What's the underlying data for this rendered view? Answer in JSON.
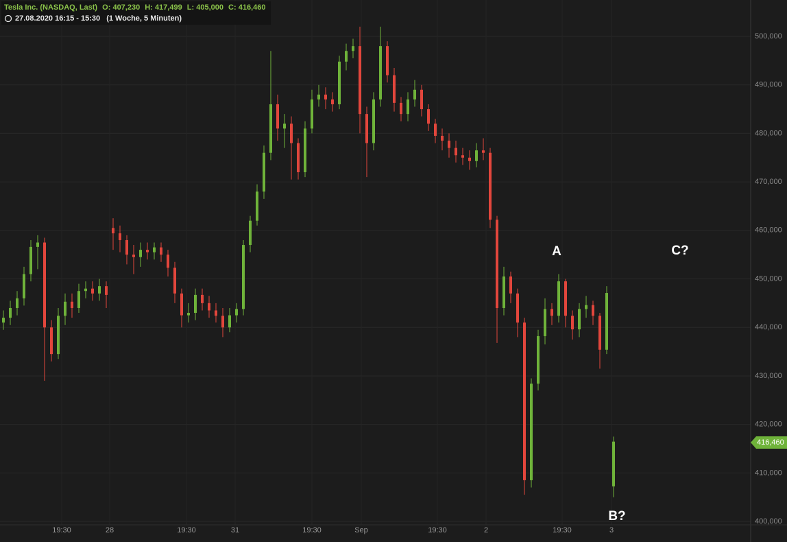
{
  "chart_data": {
    "type": "candlestick",
    "header": {
      "instrument": "Tesla Inc. (NASDAQ, Last)",
      "open": "O: 407,230",
      "high": "H: 417,499",
      "low": "L: 405,000",
      "close": "C: 416,460",
      "range": "27.08.2020 16:15 - 15:30",
      "interval": "(1 Woche, 5 Minuten)"
    },
    "last_price_label": "416,460",
    "annotations": [
      "A",
      "C?",
      "B?"
    ],
    "up_color": "#6fb33a",
    "down_color": "#e2463c",
    "grid": true,
    "open": [
      441,
      442.0,
      444,
      446,
      451,
      456.6,
      457.5,
      440,
      434.5,
      442.4,
      445.3,
      444,
      447.5,
      448,
      447,
      448.5,
      460.5,
      459.4,
      458,
      455,
      454.5,
      456,
      455.5,
      456.5,
      455,
      452.3,
      447,
      442.5,
      443,
      446.7,
      445,
      443.5,
      442.4,
      440,
      442.5,
      443.8,
      457,
      462,
      468,
      476,
      486,
      481,
      482,
      478,
      472,
      481,
      487,
      488,
      487,
      486,
      494.8,
      497,
      498,
      484,
      478,
      487,
      498,
      492,
      486.3,
      484,
      487,
      489,
      485,
      482,
      479.5,
      478.5,
      477,
      475.5,
      475,
      474.3,
      476.5,
      476,
      462.2,
      444,
      450.5,
      447,
      441,
      408.5,
      428.4,
      438.2,
      443.8,
      442.4,
      449.5,
      442.4,
      439.6,
      443.8,
      444.6,
      442.4,
      435.4,
      407.23
    ],
    "high": [
      443.5,
      445.5,
      447.5,
      452.5,
      458,
      459,
      458.5,
      441.5,
      444,
      447,
      447,
      449,
      449.5,
      449.5,
      450,
      449.5,
      462.5,
      461,
      459,
      457,
      457.5,
      457.5,
      457.5,
      457.5,
      456,
      453.5,
      448,
      445,
      448,
      448,
      446.5,
      445,
      444,
      444,
      445,
      458,
      463,
      469.5,
      477.5,
      497,
      488,
      484,
      483.5,
      479,
      482.5,
      489,
      490,
      489.5,
      488.5,
      496,
      498.5,
      499.5,
      502,
      485.5,
      488.5,
      502,
      499,
      493.5,
      487.5,
      488.5,
      491,
      490,
      486,
      483,
      481,
      480,
      478.5,
      477,
      476.5,
      478,
      479,
      477,
      463,
      452.5,
      451.5,
      448,
      442,
      429.5,
      439.5,
      446,
      445,
      451,
      450,
      443.5,
      445,
      446.5,
      445.5,
      443,
      448.5,
      417.499
    ],
    "low": [
      439.5,
      440.5,
      442.5,
      444.5,
      449.5,
      452,
      429,
      433,
      433.5,
      440.5,
      442,
      443,
      446,
      445.5,
      445.5,
      444,
      456,
      455.5,
      453,
      451,
      452.5,
      454,
      454,
      453.5,
      450.5,
      445,
      440,
      441,
      441.5,
      443.5,
      442,
      441,
      438,
      439,
      441,
      442.5,
      455.5,
      461,
      466.5,
      474.5,
      478.5,
      477,
      470.5,
      470.5,
      471,
      480,
      485.5,
      485,
      484.5,
      485,
      493,
      495.5,
      480,
      471,
      476.5,
      485.5,
      490.5,
      484.5,
      482.5,
      482.5,
      485.5,
      483.5,
      480.5,
      478,
      476.5,
      475,
      474,
      473.5,
      472.5,
      473,
      474.5,
      460.5,
      436.8,
      442.5,
      445,
      438,
      405.5,
      407,
      427,
      436.5,
      440.5,
      441,
      440,
      437.5,
      438,
      442,
      440.5,
      431.5,
      434.5,
      405
    ],
    "close": [
      442.0,
      444,
      446,
      451,
      456.6,
      457.5,
      440,
      434.5,
      442.4,
      445.3,
      444,
      447.5,
      448,
      447,
      448.5,
      446.7,
      459.4,
      458,
      455,
      454.5,
      456,
      455.5,
      456.5,
      455,
      452.3,
      447,
      442.5,
      443,
      446.7,
      445,
      443.5,
      442.4,
      440,
      442.5,
      443.8,
      457,
      462,
      468,
      476,
      486,
      481,
      482,
      478,
      472,
      481,
      487,
      488,
      487,
      486,
      494.8,
      497,
      498,
      484,
      478,
      487,
      498,
      492,
      486.3,
      484,
      487,
      489,
      485,
      482,
      479.5,
      478.5,
      477,
      475.5,
      475,
      474.3,
      476.5,
      476,
      462.2,
      444,
      450.5,
      447,
      441,
      408.5,
      428.4,
      438.2,
      443.8,
      442.4,
      449.5,
      442.4,
      439.6,
      443.8,
      444.6,
      442.4,
      435.4,
      447.1,
      416.46
    ],
    "xlim": [
      -0.5,
      109
    ],
    "xticks": [
      {
        "value": 8.5,
        "label": "19:30"
      },
      {
        "value": 15.5,
        "label": "28"
      },
      {
        "value": 26.7,
        "label": "19:30"
      },
      {
        "value": 33.8,
        "label": "31"
      },
      {
        "value": 45,
        "label": "19:30"
      },
      {
        "value": 52.2,
        "label": "Sep"
      },
      {
        "value": 63.3,
        "label": "19:30"
      },
      {
        "value": 70.4,
        "label": "2"
      },
      {
        "value": 81.5,
        "label": "19:30"
      },
      {
        "value": 88.7,
        "label": "3"
      }
    ],
    "ylim": [
      399.3,
      507.5
    ],
    "yticks": [
      {
        "value": 400,
        "label": "400,000"
      },
      {
        "value": 410,
        "label": "410,000"
      },
      {
        "value": 420,
        "label": "420,000"
      },
      {
        "value": 430,
        "label": "430,000"
      },
      {
        "value": 440,
        "label": "440,000"
      },
      {
        "value": 450,
        "label": "450,000"
      },
      {
        "value": 460,
        "label": "460,000"
      },
      {
        "value": 470,
        "label": "470,000"
      },
      {
        "value": 480,
        "label": "480,000"
      },
      {
        "value": 490,
        "label": "490,000"
      },
      {
        "value": 500,
        "label": "500,000"
      }
    ]
  }
}
